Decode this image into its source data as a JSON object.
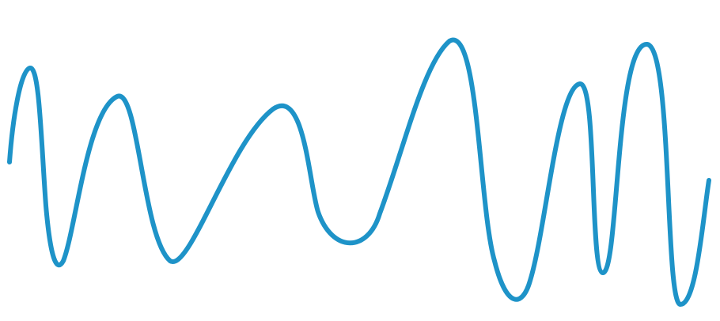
{
  "figure": {
    "kind": "waveform",
    "background_color": "#ffffff",
    "line_color": "#1e93c8",
    "labels": []
  }
}
